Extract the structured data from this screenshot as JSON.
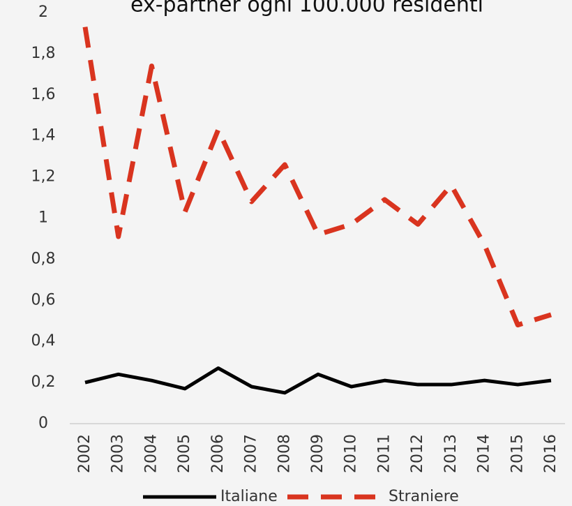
{
  "chart_data": {
    "type": "line",
    "title": "ex-partner ogni 100.000 residenti",
    "categories": [
      "2002",
      "2003",
      "2004",
      "2005",
      "2006",
      "2007",
      "2008",
      "2009",
      "2010",
      "2011",
      "2012",
      "2013",
      "2014",
      "2015",
      "2016"
    ],
    "series": [
      {
        "name": "Italiane",
        "color": "#000000",
        "dash": false,
        "values": [
          0.2,
          0.24,
          0.21,
          0.17,
          0.27,
          0.18,
          0.15,
          0.24,
          0.18,
          0.21,
          0.19,
          0.19,
          0.21,
          0.19,
          0.21
        ]
      },
      {
        "name": "Straniere",
        "color": "#d9341f",
        "dash": true,
        "values": [
          1.93,
          0.91,
          1.74,
          1.03,
          1.43,
          1.08,
          1.26,
          0.92,
          0.97,
          1.09,
          0.97,
          1.16,
          0.87,
          0.48,
          0.53
        ]
      }
    ],
    "ylim": [
      0,
      2
    ],
    "yticks": [
      0,
      {
        "value": 0.2,
        "label": "0,2"
      },
      {
        "value": 0.4,
        "label": "0,4"
      },
      {
        "value": 0.6,
        "label": "0,6"
      },
      {
        "value": 0.8,
        "label": "0,8"
      },
      1,
      {
        "value": 1.2,
        "label": "1,2"
      },
      {
        "value": 1.4,
        "label": "1,4"
      },
      {
        "value": 1.6,
        "label": "1,6"
      },
      {
        "value": 1.8,
        "label": "1,8"
      },
      2
    ]
  }
}
